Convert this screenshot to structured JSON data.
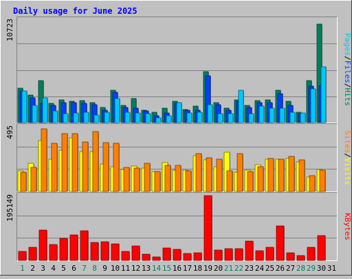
{
  "chart_data": [
    {
      "type": "bar",
      "title": "Daily usage for June 2025",
      "ylabel_parts": [
        "Pages",
        "Files",
        "Hits"
      ],
      "ymax_label": "10723",
      "ylim": [
        0,
        10723
      ],
      "grid": true,
      "categories": [
        "1",
        "2",
        "3",
        "4",
        "5",
        "6",
        "7",
        "8",
        "9",
        "10",
        "11",
        "12",
        "13",
        "14",
        "15",
        "16",
        "17",
        "18",
        "19",
        "20",
        "21",
        "22",
        "23",
        "24",
        "25",
        "26",
        "27",
        "28",
        "29",
        "30",
        "31"
      ],
      "weekend_days": [
        "1",
        "7",
        "8",
        "14",
        "15",
        "21",
        "22",
        "28",
        "29"
      ],
      "series": [
        {
          "name": "Hits",
          "values": [
            3600,
            2900,
            4400,
            2000,
            2400,
            2200,
            2300,
            2100,
            1600,
            3400,
            1800,
            2500,
            1300,
            1100,
            1500,
            2200,
            1400,
            1700,
            5300,
            2100,
            1500,
            2400,
            1800,
            2300,
            2400,
            3400,
            2200,
            1100,
            4400,
            10300,
            0
          ]
        },
        {
          "name": "Files",
          "values": [
            3300,
            2600,
            2000,
            1800,
            2100,
            2100,
            2000,
            1900,
            1300,
            3200,
            1600,
            1500,
            1200,
            700,
            1000,
            2000,
            1300,
            1300,
            4900,
            1900,
            1300,
            2200,
            1600,
            2100,
            2100,
            3000,
            1800,
            900,
            3800,
            3900,
            0
          ]
        },
        {
          "name": "Pages",
          "values": [
            3300,
            1800,
            2600,
            1200,
            900,
            1000,
            1100,
            800,
            1100,
            2500,
            1100,
            1000,
            900,
            500,
            700,
            2100,
            1000,
            1100,
            1900,
            900,
            900,
            3400,
            900,
            1700,
            1500,
            1500,
            1100,
            1000,
            3500,
            5800,
            0
          ]
        }
      ],
      "colors": {
        "Hits": "#00805c",
        "Files": "#0040ff",
        "Pages": "#00c8ff"
      }
    },
    {
      "type": "bar",
      "ylabel_parts": [
        "Sites",
        "Visits"
      ],
      "ymax_label": "495",
      "ylim": [
        0,
        495
      ],
      "grid": true,
      "series": [
        {
          "name": "Visits",
          "values": [
            160,
            215,
            390,
            250,
            315,
            410,
            305,
            305,
            210,
            190,
            170,
            195,
            180,
            155,
            220,
            165,
            165,
            275,
            242,
            190,
            300,
            150,
            165,
            205,
            245,
            245,
            252,
            225,
            110,
            170,
            0
          ]
        },
        {
          "name": "Sites",
          "values": [
            150,
            185,
            480,
            370,
            440,
            440,
            380,
            460,
            375,
            370,
            185,
            180,
            215,
            155,
            200,
            200,
            160,
            290,
            260,
            250,
            160,
            290,
            155,
            190,
            255,
            250,
            270,
            240,
            120,
            165,
            0
          ]
        }
      ],
      "colors": {
        "Visits": "#ffff00",
        "Sites": "#ff8000"
      }
    },
    {
      "type": "bar",
      "ylabel_parts": [
        "KBytes"
      ],
      "ymax_label": "195149",
      "ylim": [
        0,
        195149
      ],
      "grid": true,
      "series": [
        {
          "name": "KBytes",
          "values": [
            26000,
            39000,
            92000,
            48000,
            66000,
            76000,
            89000,
            55000,
            56000,
            49000,
            28000,
            43000,
            18000,
            11000,
            38000,
            34000,
            20000,
            23000,
            195149,
            32000,
            35000,
            36000,
            59000,
            29000,
            40000,
            104000,
            23000,
            14000,
            40000,
            74000,
            0
          ]
        }
      ],
      "colors": {
        "KBytes": "#ff0000"
      }
    }
  ],
  "ylabel_colors": {
    "Pages": "#00c8ff",
    "Files": "#0040ff",
    "Hits": "#00805c",
    "Sites": "#ff8000",
    "Visits": "#ffff00",
    "KBytes": "#ff0000"
  },
  "sep": "/"
}
